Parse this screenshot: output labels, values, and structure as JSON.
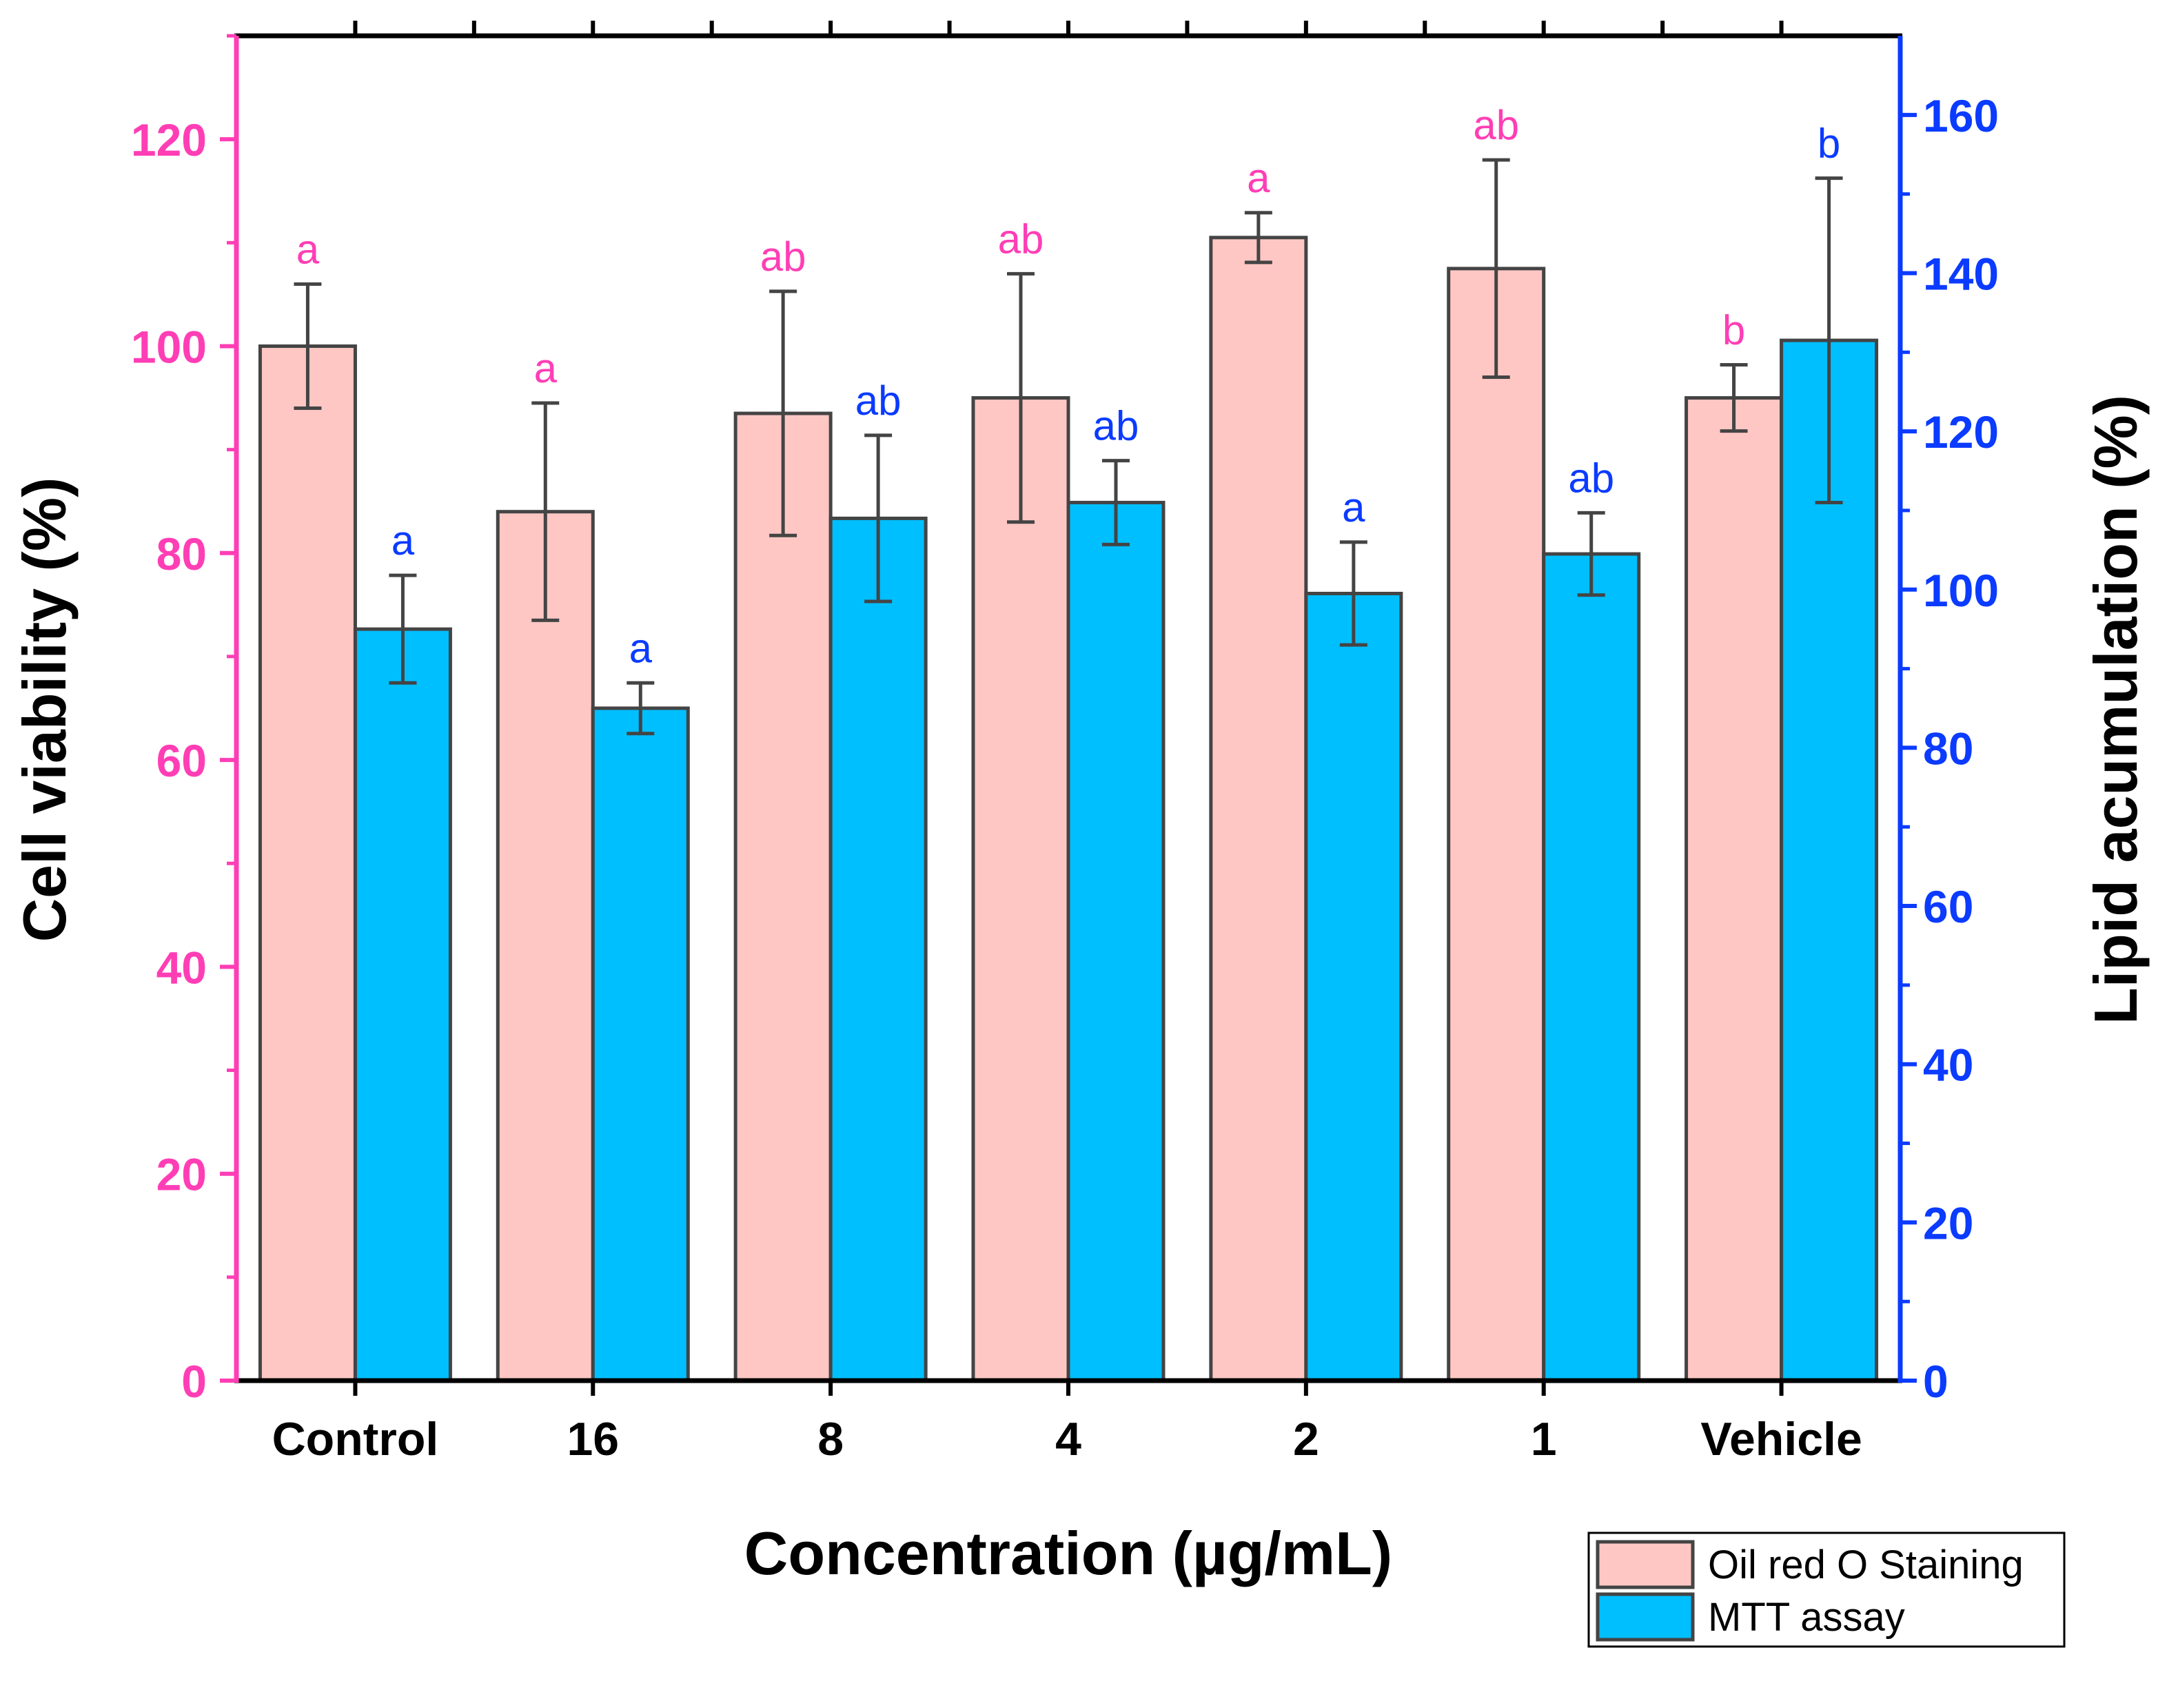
{
  "chart_data": {
    "type": "bar",
    "xlabel": "Concentration (µg/mL)",
    "ylabel_left": "Cell viability (%)",
    "ylabel_right": "Lipid acumulation (%)",
    "categories": [
      "Control",
      "16",
      "8",
      "4",
      "2",
      "1",
      "Vehicle"
    ],
    "ylim_left": [
      0,
      130
    ],
    "ylim_right": [
      0,
      170
    ],
    "yticks_left": [
      "0",
      "20",
      "40",
      "60",
      "80",
      "100",
      "120"
    ],
    "yticks_right": [
      "0",
      "20",
      "40",
      "60",
      "80",
      "100",
      "120",
      "140",
      "160"
    ],
    "grid": false,
    "legend_position": "bottom-right",
    "colors": {
      "left_axis": "#ff3eb5",
      "right_axis": "#0b3bff",
      "series_1": "#ffc7c4",
      "series_2": "#00bfff",
      "bar_edge": "#444444",
      "error_bar": "#444444"
    },
    "series": [
      {
        "name": "Oil red O Staining",
        "axis": "left",
        "values": [
          100,
          84,
          93.5,
          95,
          110.5,
          107.5,
          95
        ],
        "errors": [
          6,
          10.5,
          11.8,
          12,
          2.4,
          10.5,
          3.2
        ],
        "significance": [
          "a",
          "a",
          "ab",
          "ab",
          "a",
          "ab",
          "b"
        ]
      },
      {
        "name": "MTT assay",
        "axis": "right",
        "values": [
          95,
          85,
          109,
          111,
          99.5,
          104.5,
          131.5
        ],
        "errors": [
          6.8,
          3.2,
          10.5,
          5.3,
          6.5,
          5.2,
          20.5
        ],
        "significance": [
          "a",
          "a",
          "ab",
          "ab",
          "a",
          "ab",
          "b"
        ]
      }
    ]
  }
}
